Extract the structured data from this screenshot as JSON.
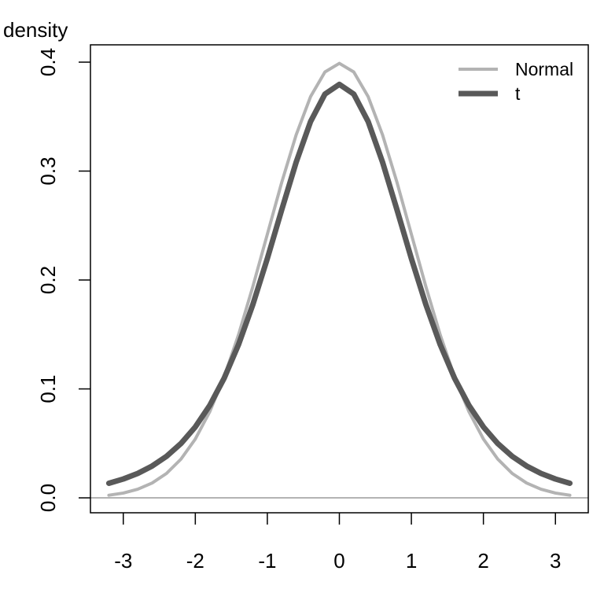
{
  "chart_data": {
    "type": "line",
    "y_label": "density",
    "x": [
      -3.2,
      -3.0,
      -2.8,
      -2.6,
      -2.4,
      -2.2,
      -2.0,
      -1.8,
      -1.6,
      -1.4,
      -1.2,
      -1.0,
      -0.8,
      -0.6,
      -0.4,
      -0.2,
      0,
      0.2,
      0.4,
      0.6,
      0.8,
      1.0,
      1.2,
      1.4,
      1.6,
      1.8,
      2.0,
      2.2,
      2.4,
      2.6,
      2.8,
      3.0,
      3.2
    ],
    "series": [
      {
        "name": "Normal",
        "color": "#b3b3b3",
        "values": [
          0.0024,
          0.0044,
          0.0079,
          0.0136,
          0.0224,
          0.0355,
          0.054,
          0.079,
          0.1109,
          0.1497,
          0.1942,
          0.242,
          0.2897,
          0.3332,
          0.3683,
          0.391,
          0.3989,
          0.391,
          0.3683,
          0.3332,
          0.2897,
          0.242,
          0.1942,
          0.1497,
          0.1109,
          0.079,
          0.054,
          0.0355,
          0.0224,
          0.0136,
          0.0079,
          0.0044,
          0.0024
        ]
      },
      {
        "name": "t",
        "color": "#595959",
        "values": [
          0.0134,
          0.0173,
          0.0224,
          0.0292,
          0.0381,
          0.0498,
          0.0651,
          0.0848,
          0.1098,
          0.1407,
          0.1777,
          0.2197,
          0.2645,
          0.3081,
          0.3454,
          0.3707,
          0.3796,
          0.3707,
          0.3454,
          0.3081,
          0.2645,
          0.2197,
          0.1777,
          0.1407,
          0.1098,
          0.0848,
          0.0651,
          0.0498,
          0.0381,
          0.0292,
          0.0224,
          0.0173,
          0.0134
        ]
      }
    ],
    "xlim": [
      -3.456,
      3.456
    ],
    "xticks": [
      -3,
      -2,
      -1,
      0,
      1,
      2,
      3
    ],
    "ylim": [
      -0.0137,
      0.4159
    ],
    "yticks": [
      {
        "value": 0,
        "label": "0.0"
      },
      0.1,
      0.2,
      0.3,
      0.4
    ],
    "hline": 0,
    "hline_color": "#b3b3b3",
    "legend": "top-right"
  }
}
